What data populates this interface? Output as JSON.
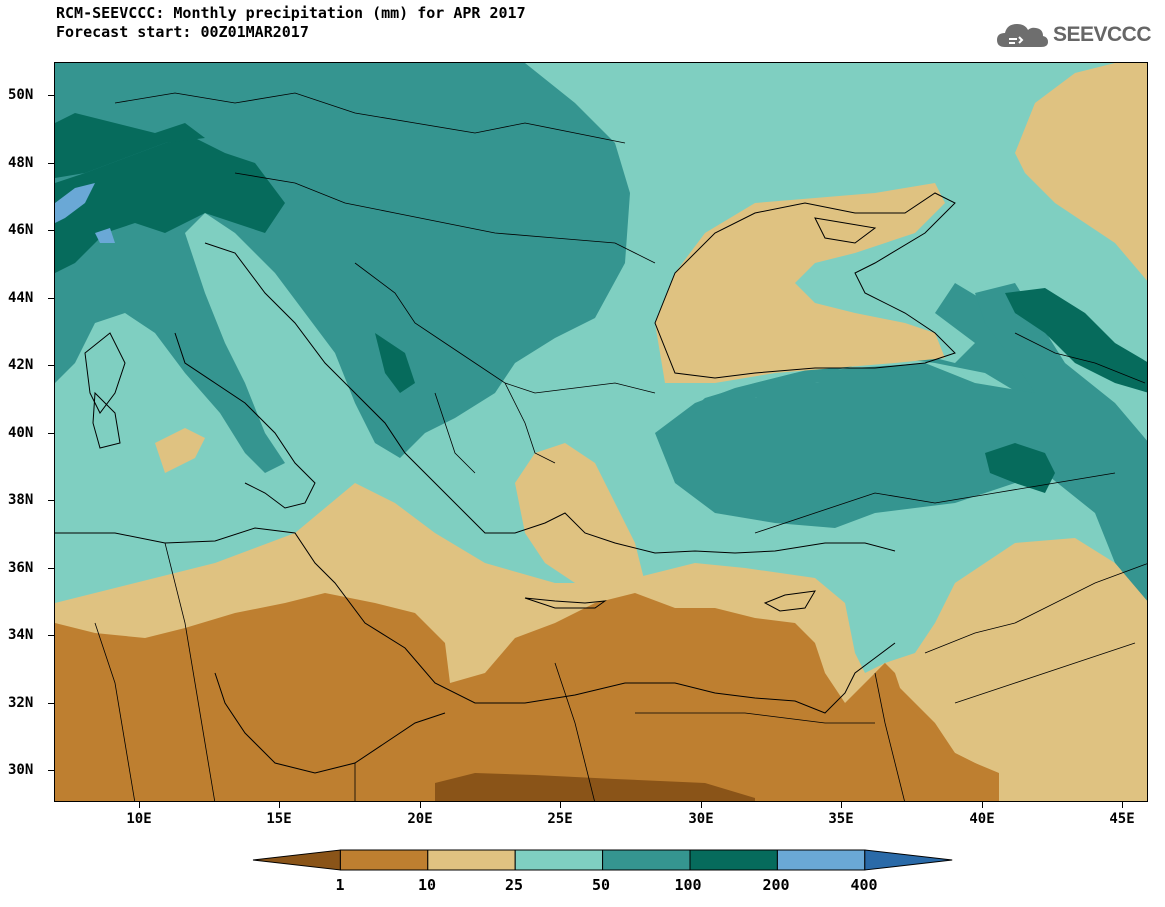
{
  "header": {
    "title": "RCM-SEEVCCC: Monthly precipitation (mm) for APR 2017",
    "subtitle": "Forecast start: 00Z01MAR2017",
    "logo_text": "SEEVCCC"
  },
  "axes": {
    "lat_labels": [
      "50N",
      "48N",
      "46N",
      "44N",
      "42N",
      "40N",
      "38N",
      "36N",
      "34N",
      "32N",
      "30N"
    ],
    "lon_labels": [
      "10E",
      "15E",
      "20E",
      "25E",
      "30E",
      "35E",
      "40E",
      "45E"
    ]
  },
  "legend": {
    "labels": [
      "1",
      "10",
      "25",
      "50",
      "100",
      "200",
      "400"
    ],
    "colors": [
      "#8a5418",
      "#be7f30",
      "#dfc281",
      "#7fcfc1",
      "#359590",
      "#066b5c",
      "#6aa8d6",
      "#2a6aa8"
    ]
  },
  "chart_data": {
    "type": "heatmap",
    "title": "RCM-SEEVCCC: Monthly precipitation (mm) for APR 2017",
    "subtitle": "Forecast start: 00Z01MAR2017",
    "variable": "Monthly precipitation",
    "units": "mm",
    "x_axis": {
      "range": [
        7,
        46
      ],
      "ticks": [
        10,
        15,
        20,
        25,
        30,
        35,
        40,
        45
      ],
      "tick_labels": [
        "10E",
        "15E",
        "20E",
        "25E",
        "30E",
        "35E",
        "40E",
        "45E"
      ]
    },
    "y_axis": {
      "range": [
        29,
        51
      ],
      "ticks": [
        30,
        32,
        34,
        36,
        38,
        40,
        42,
        44,
        46,
        48,
        50
      ],
      "tick_labels": [
        "30N",
        "32N",
        "34N",
        "36N",
        "38N",
        "40N",
        "42N",
        "44N",
        "46N",
        "48N",
        "50N"
      ]
    },
    "color_levels": [
      1,
      10,
      25,
      50,
      100,
      200,
      400
    ],
    "legend_placement": "bottom"
  }
}
